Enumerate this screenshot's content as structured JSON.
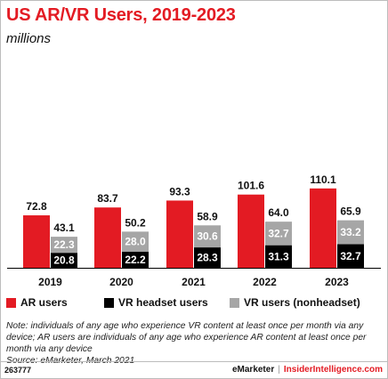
{
  "header": {
    "title": "US AR/VR Users, 2019-2023",
    "subtitle": "millions"
  },
  "chart_data": {
    "type": "bar",
    "categories": [
      "2019",
      "2020",
      "2021",
      "2022",
      "2023"
    ],
    "series": [
      {
        "name": "AR users",
        "values": [
          72.8,
          83.7,
          93.3,
          101.6,
          110.1
        ],
        "color": "#e31b23"
      },
      {
        "name": "VR headset users",
        "values": [
          20.8,
          22.2,
          28.3,
          31.3,
          32.7
        ],
        "color": "#000000"
      },
      {
        "name": "VR users (nonheadset)",
        "values": [
          22.3,
          28.0,
          30.6,
          32.7,
          33.2
        ],
        "color": "#a6a6a6"
      }
    ],
    "vr_totals": [
      "43.1",
      "50.2",
      "58.9",
      "64.0",
      "65.9"
    ],
    "vr_stack": "VR headset users (bottom) stacked with VR users (nonheadset) (top)",
    "legend_position": "bottom",
    "grid": false,
    "ylim": [
      0,
      115
    ]
  },
  "legend": {
    "items": [
      {
        "label": "AR users",
        "color": "#e31b23"
      },
      {
        "label": "VR headset users",
        "color": "#000000"
      },
      {
        "label": "VR users (nonheadset)",
        "color": "#a6a6a6"
      }
    ]
  },
  "note": {
    "text": "Note: individuals of any age who experience VR content at least once per month via any device; AR users are individuals of any age who experience AR content at least once per month via any device",
    "source": "Source: eMarketer, March 2021"
  },
  "footer": {
    "id": "263777",
    "brand_left": "eMarketer",
    "separator": "|",
    "brand_right": "InsiderIntelligence.com"
  }
}
